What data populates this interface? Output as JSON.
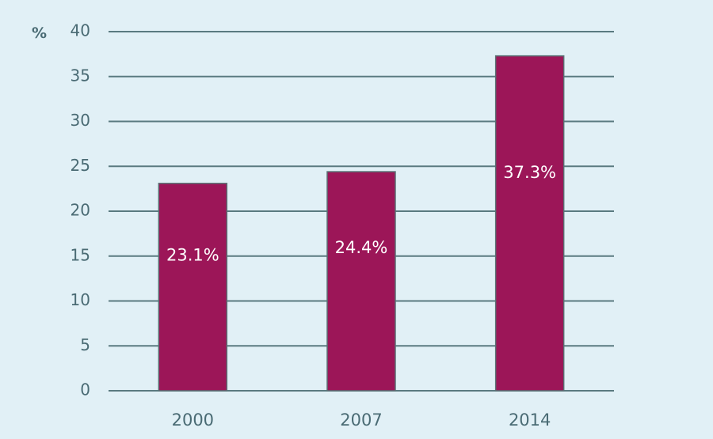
{
  "chart_data": {
    "type": "bar",
    "categories": [
      "2000",
      "2007",
      "2014"
    ],
    "values": [
      23.1,
      24.4,
      37.3
    ],
    "data_labels": [
      "23.1%",
      "24.4%",
      "37.3%"
    ],
    "title": "",
    "xlabel": "",
    "ylabel": "%",
    "ylim": [
      0,
      40
    ],
    "yticks": [
      "0",
      "5",
      "10",
      "15",
      "20",
      "25",
      "30",
      "35",
      "40"
    ],
    "ytick_values": [
      0,
      5,
      10,
      15,
      20,
      25,
      30,
      35,
      40
    ],
    "grid": true,
    "legend": "none",
    "colors": {
      "bar": "#9c1658",
      "bar_edge": "#5a6f73",
      "gridline": "#5a7a80",
      "background": "#e1f0f6",
      "text": "#4a6b74"
    }
  }
}
